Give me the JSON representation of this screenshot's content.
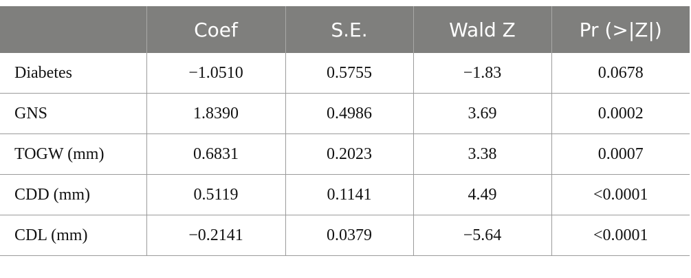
{
  "header": {
    "col0": "",
    "col1": "Coef",
    "col2": "S.E.",
    "col3": "Wald Z",
    "col4": "Pr (>|Z|)"
  },
  "rows": [
    {
      "label": "Diabetes",
      "coef": "−1.0510",
      "se": "0.5755",
      "wald": "−1.83",
      "p": "0.0678"
    },
    {
      "label": "GNS",
      "coef": "1.8390",
      "se": "0.4986",
      "wald": "3.69",
      "p": "0.0002"
    },
    {
      "label": "TOGW (mm)",
      "coef": "0.6831",
      "se": "0.2023",
      "wald": "3.38",
      "p": "0.0007"
    },
    {
      "label": "CDD (mm)",
      "coef": "0.5119",
      "se": "0.1141",
      "wald": "4.49",
      "p": "<0.0001"
    },
    {
      "label": "CDL (mm)",
      "coef": "−0.2141",
      "se": "0.0379",
      "wald": "−5.64",
      "p": "<0.0001"
    }
  ]
}
